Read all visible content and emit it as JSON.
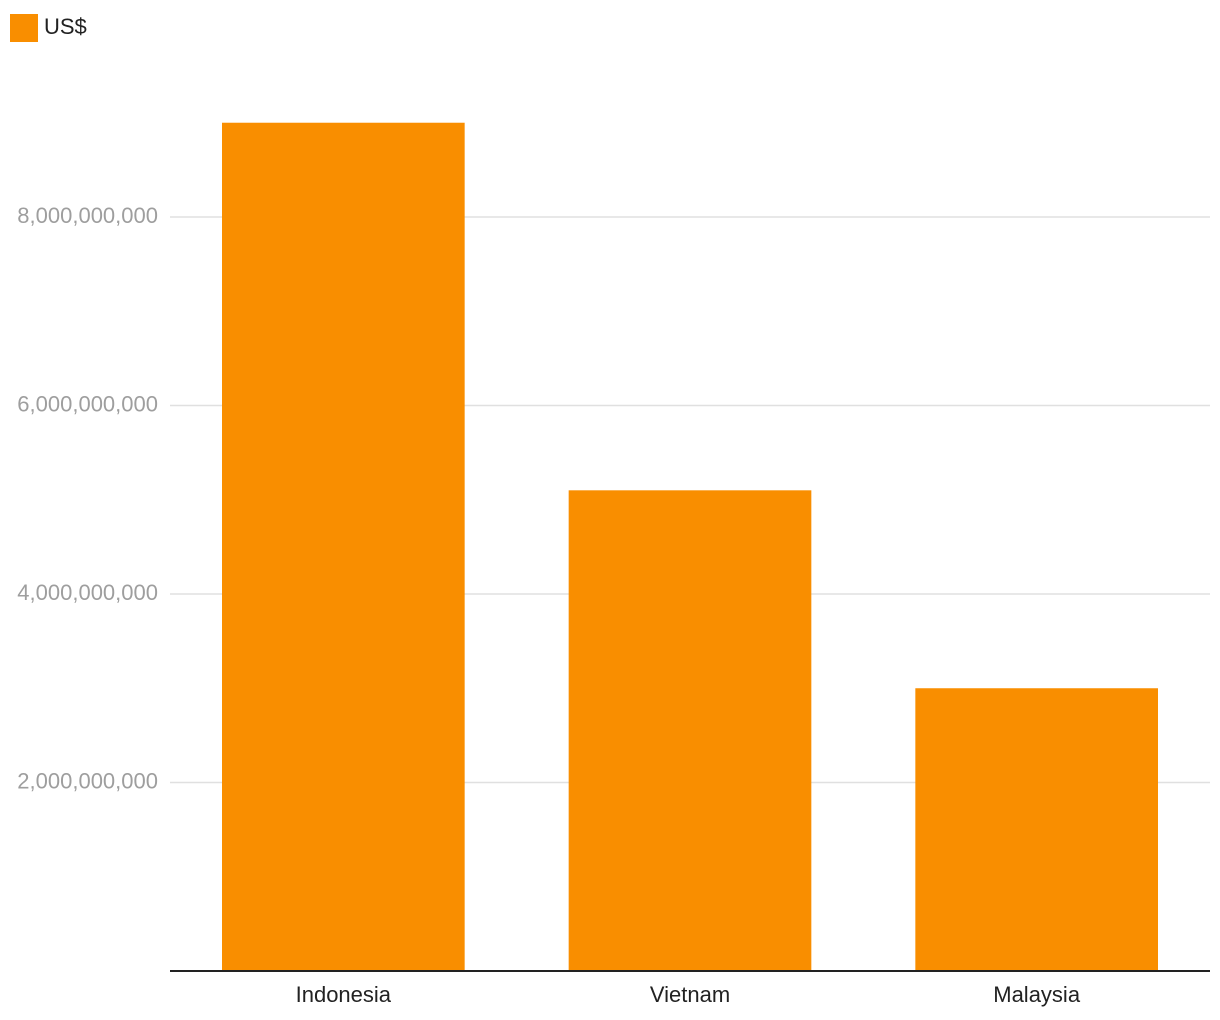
{
  "chart_data": {
    "type": "bar",
    "categories": [
      "Indonesia",
      "Vietnam",
      "Malaysia"
    ],
    "series": [
      {
        "name": "US$",
        "color": "#f98e00",
        "values": [
          9000000000,
          5100000000,
          3000000000
        ]
      }
    ],
    "ylim": [
      0,
      9500000000
    ],
    "yticks": [
      {
        "value": 2000000000,
        "label": "2,000,000,000"
      },
      {
        "value": 4000000000,
        "label": "4,000,000,000"
      },
      {
        "value": 6000000000,
        "label": "6,000,000,000"
      },
      {
        "value": 8000000000,
        "label": "8,000,000,000"
      }
    ],
    "grid": true,
    "legend": "top-left"
  }
}
